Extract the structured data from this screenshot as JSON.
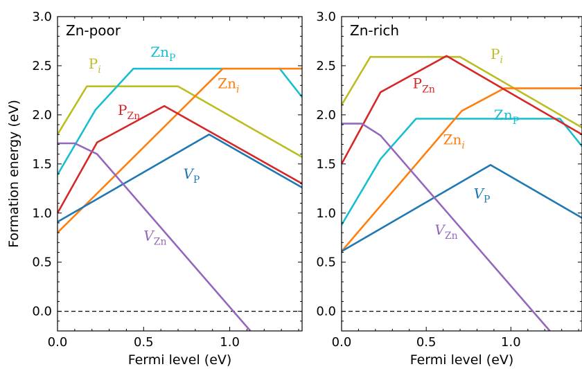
{
  "colors": {
    "P_i": "#bcbd22",
    "Zn_P": "#17becf",
    "Zn_i": "#ff7f0e",
    "P_Zn": "#d62728",
    "V_P": "#1f77b4",
    "V_Zn": "#9467bd"
  },
  "chart_data": [
    {
      "type": "line",
      "title": "Zn-poor",
      "xlabel": "Fermi level (eV)",
      "ylabel": "Formation energy (eV)",
      "xlim": [
        0,
        1.42
      ],
      "ylim": [
        -0.2,
        3.0
      ],
      "xticks": [
        "0.0",
        "0.5",
        "1.0"
      ],
      "yticks": [
        "0.0",
        "0.5",
        "1.0",
        "1.5",
        "2.0",
        "2.5",
        "3.0"
      ],
      "zero_line": "dashed",
      "series": [
        {
          "key": "P_i",
          "name_main": "P",
          "name_sub": "i",
          "sub_italic": true,
          "main_italic": false,
          "points": [
            [
              0,
              1.8
            ],
            [
              0.17,
              2.29
            ],
            [
              0.7,
              2.29
            ],
            [
              1.42,
              1.57
            ]
          ]
        },
        {
          "key": "Zn_P",
          "name_main": "Zn",
          "name_sub": "P",
          "sub_italic": false,
          "main_italic": false,
          "points": [
            [
              0,
              1.39
            ],
            [
              0.22,
              2.05
            ],
            [
              0.44,
              2.47
            ],
            [
              1.29,
              2.47
            ],
            [
              1.42,
              2.18
            ]
          ]
        },
        {
          "key": "Zn_i",
          "name_main": "Zn",
          "name_sub": "i",
          "sub_italic": true,
          "main_italic": false,
          "points": [
            [
              0,
              0.8
            ],
            [
              0.96,
              2.47
            ],
            [
              1.42,
              2.47
            ]
          ]
        },
        {
          "key": "P_Zn",
          "name_main": "P",
          "name_sub": "Zn",
          "sub_italic": false,
          "main_italic": false,
          "points": [
            [
              0,
              1.0
            ],
            [
              0.23,
              1.72
            ],
            [
              0.62,
              2.09
            ],
            [
              1.42,
              1.3
            ]
          ]
        },
        {
          "key": "V_P",
          "name_main": "V",
          "name_sub": "P",
          "sub_italic": false,
          "main_italic": true,
          "points": [
            [
              0,
              0.91
            ],
            [
              0.88,
              1.8
            ],
            [
              1.42,
              1.26
            ]
          ]
        },
        {
          "key": "V_Zn",
          "name_main": "V",
          "name_sub": "Zn",
          "sub_italic": false,
          "main_italic": true,
          "points": [
            [
              0,
              1.71
            ],
            [
              0.1,
              1.71
            ],
            [
              0.23,
              1.6
            ],
            [
              1.12,
              -0.2
            ]
          ]
        }
      ],
      "labels": [
        {
          "key": "P_i",
          "x": 0.18,
          "y": 2.47
        },
        {
          "key": "Zn_P",
          "x": 0.54,
          "y": 2.59
        },
        {
          "key": "Zn_i",
          "x": 0.93,
          "y": 2.27
        },
        {
          "key": "P_Zn",
          "x": 0.35,
          "y": 2.0
        },
        {
          "key": "V_P",
          "x": 0.73,
          "y": 1.35
        },
        {
          "key": "V_Zn",
          "x": 0.5,
          "y": 0.72
        }
      ]
    },
    {
      "type": "line",
      "title": "Zn-rich",
      "xlabel": "Fermi level (eV)",
      "ylabel": "",
      "xlim": [
        0,
        1.42
      ],
      "ylim": [
        -0.2,
        3.0
      ],
      "xticks": [
        "0.0",
        "0.5",
        "1.0"
      ],
      "yticks": [
        "0.0",
        "0.5",
        "1.0",
        "1.5",
        "2.0",
        "2.5",
        "3.0"
      ],
      "zero_line": "dashed",
      "series": [
        {
          "key": "P_i",
          "name_main": "P",
          "name_sub": "i",
          "sub_italic": true,
          "main_italic": false,
          "points": [
            [
              0,
              2.1
            ],
            [
              0.17,
              2.59
            ],
            [
              0.7,
              2.59
            ],
            [
              1.42,
              1.87
            ]
          ]
        },
        {
          "key": "Zn_P",
          "name_main": "Zn",
          "name_sub": "P",
          "sub_italic": false,
          "main_italic": false,
          "points": [
            [
              0,
              0.88
            ],
            [
              0.23,
              1.55
            ],
            [
              0.44,
              1.96
            ],
            [
              1.29,
              1.96
            ],
            [
              1.42,
              1.68
            ]
          ]
        },
        {
          "key": "Zn_i",
          "name_main": "Zn",
          "name_sub": "i",
          "sub_italic": true,
          "main_italic": false,
          "points": [
            [
              0,
              0.61
            ],
            [
              0.71,
              2.04
            ],
            [
              0.96,
              2.27
            ],
            [
              1.42,
              2.27
            ]
          ]
        },
        {
          "key": "P_Zn",
          "name_main": "P",
          "name_sub": "Zn",
          "sub_italic": false,
          "main_italic": false,
          "points": [
            [
              0,
              1.5
            ],
            [
              0.23,
              2.23
            ],
            [
              0.62,
              2.6
            ],
            [
              1.42,
              1.8
            ]
          ]
        },
        {
          "key": "V_P",
          "name_main": "V",
          "name_sub": "P",
          "sub_italic": false,
          "main_italic": true,
          "points": [
            [
              0,
              0.61
            ],
            [
              0.88,
              1.49
            ],
            [
              1.42,
              0.95
            ]
          ]
        },
        {
          "key": "V_Zn",
          "name_main": "V",
          "name_sub": "Zn",
          "sub_italic": false,
          "main_italic": true,
          "points": [
            [
              0,
              1.91
            ],
            [
              0.12,
              1.91
            ],
            [
              0.23,
              1.79
            ],
            [
              1.23,
              -0.2
            ]
          ]
        }
      ],
      "labels": [
        {
          "key": "P_i",
          "x": 0.88,
          "y": 2.57
        },
        {
          "key": "P_Zn",
          "x": 0.42,
          "y": 2.27
        },
        {
          "key": "Zn_P",
          "x": 0.9,
          "y": 1.95
        },
        {
          "key": "Zn_i",
          "x": 0.6,
          "y": 1.7
        },
        {
          "key": "V_P",
          "x": 0.78,
          "y": 1.15
        },
        {
          "key": "V_Zn",
          "x": 0.55,
          "y": 0.78
        }
      ]
    }
  ]
}
